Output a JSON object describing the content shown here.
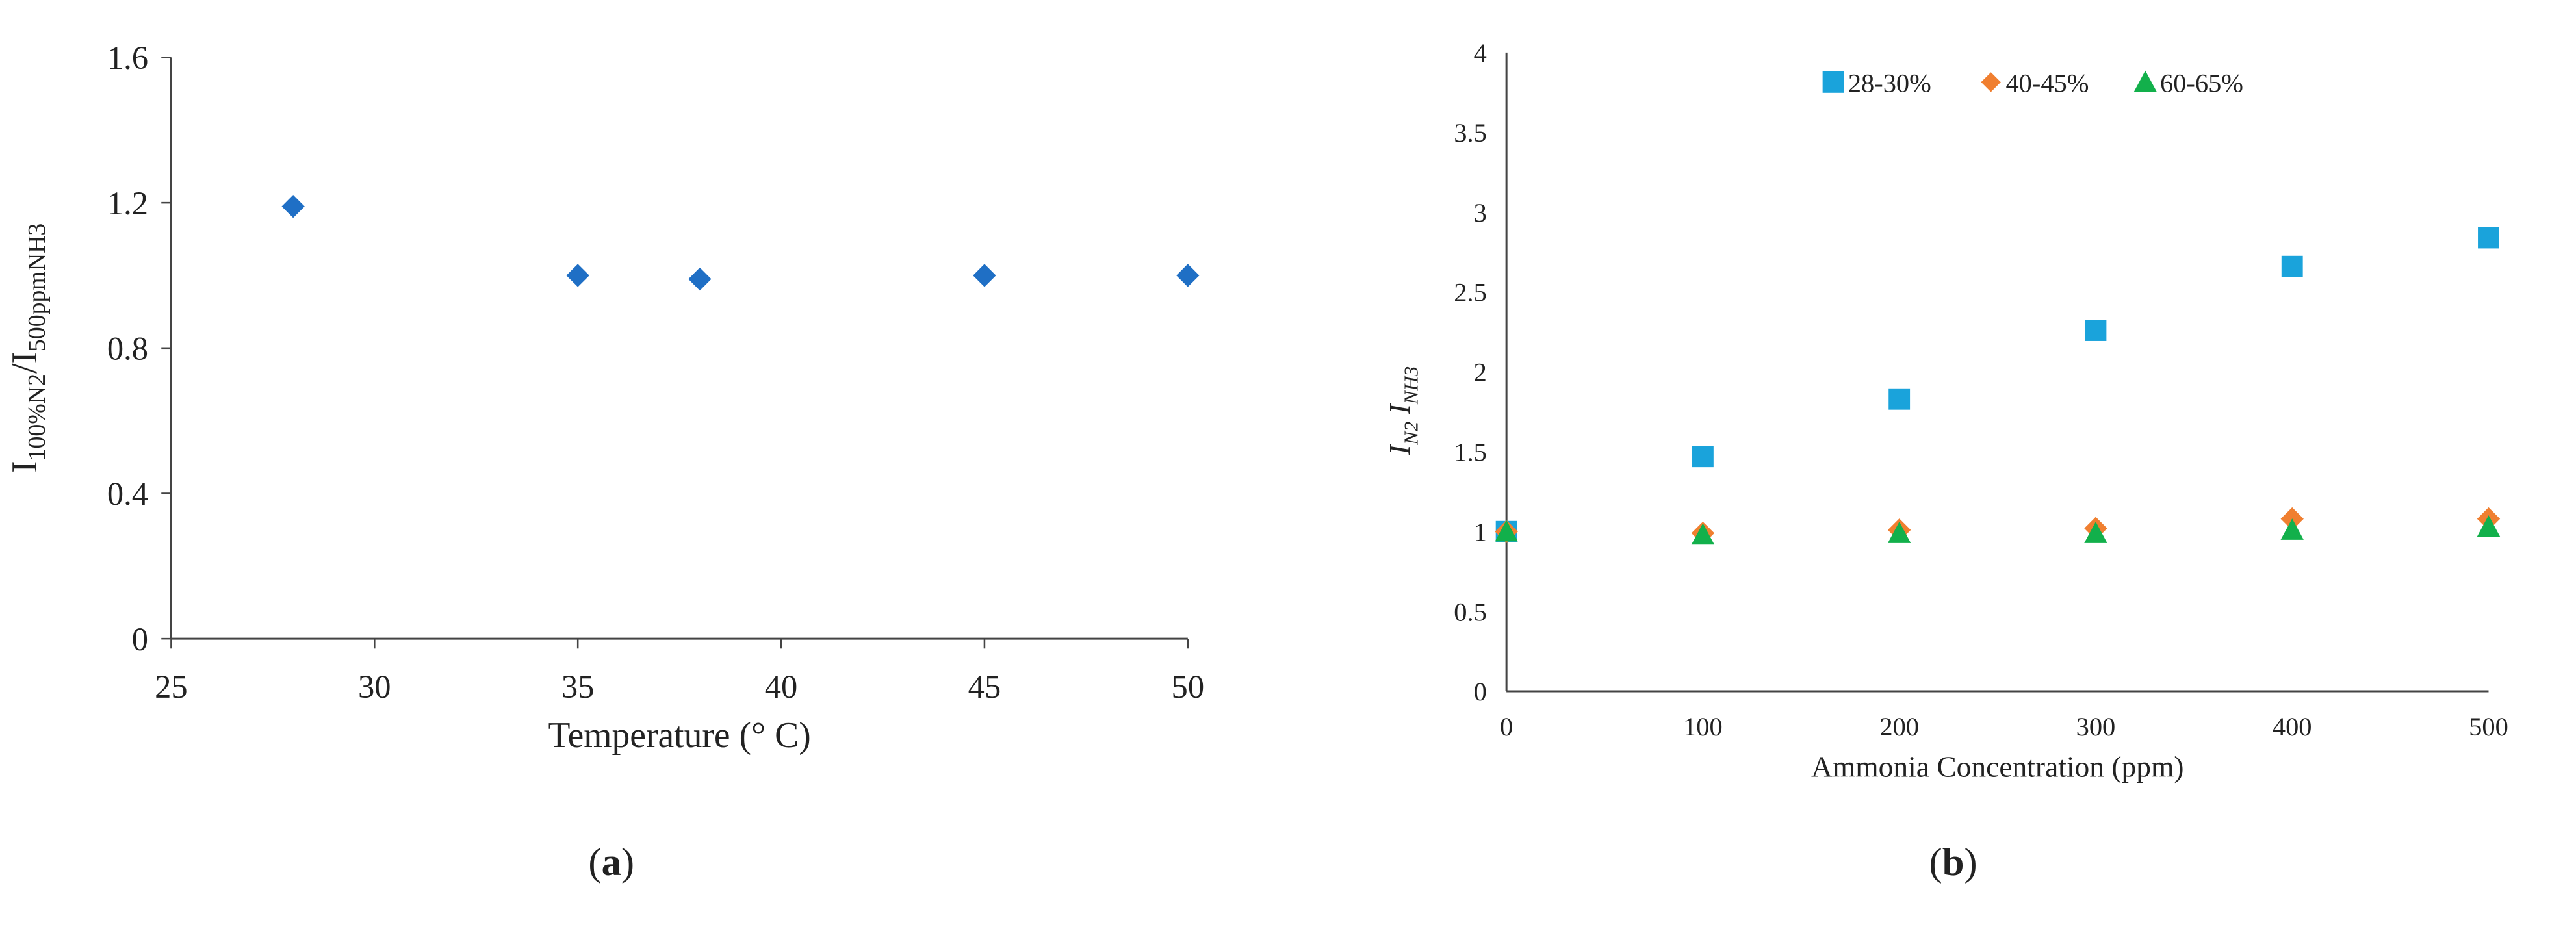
{
  "chart_data": [
    {
      "type": "scatter",
      "caption": "a",
      "xlabel": "Temperature (° C)",
      "ylabel": [
        "I",
        "100%N2",
        "/I",
        "500ppmNH3"
      ],
      "x": [
        28,
        35,
        38,
        45,
        50
      ],
      "series": [
        {
          "color": "#1f6fc5",
          "marker": "diamond",
          "values": [
            1.19,
            1.0,
            0.99,
            1.0,
            1.0
          ]
        }
      ],
      "xlim": [
        25,
        50
      ],
      "xticks": [
        25,
        30,
        35,
        40,
        45,
        50
      ],
      "ylim": [
        0,
        1.6
      ],
      "yticks": [
        0,
        0.4,
        0.8,
        1.2,
        1.6
      ]
    },
    {
      "type": "scatter",
      "caption": "b",
      "xlabel": "Ammonia Concentration (ppm)",
      "ylabel": [
        "I",
        "N2",
        " I",
        "NH3"
      ],
      "x": [
        0,
        100,
        200,
        300,
        400,
        500
      ],
      "series": [
        {
          "name": "28-30%",
          "color": "#1aa3db",
          "marker": "square",
          "values": [
            1.0,
            1.47,
            1.83,
            2.26,
            2.66,
            2.84
          ]
        },
        {
          "name": "40-45%",
          "color": "#f07f30",
          "marker": "diamond",
          "values": [
            1.0,
            0.99,
            1.01,
            1.02,
            1.08,
            1.08
          ]
        },
        {
          "name": "60-65%",
          "color": "#12b04b",
          "marker": "triangle",
          "values": [
            1.0,
            0.98,
            0.99,
            0.99,
            1.01,
            1.03
          ]
        }
      ],
      "xlim": [
        0,
        500
      ],
      "xticks": [
        0,
        100,
        200,
        300,
        400,
        500
      ],
      "ylim": [
        0,
        4
      ],
      "yticks": [
        0,
        0.5,
        1,
        1.5,
        2,
        2.5,
        3,
        3.5,
        4
      ],
      "legend": "top"
    }
  ]
}
